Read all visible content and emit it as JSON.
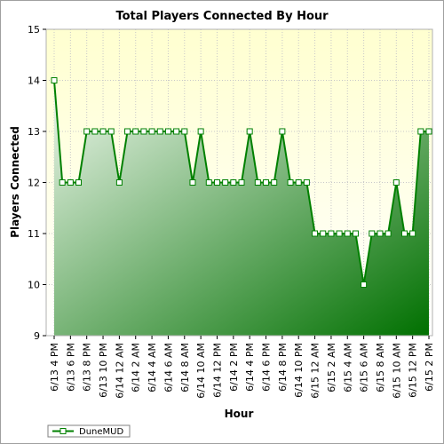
{
  "chart_data": {
    "type": "area",
    "title": "Total Players Connected By Hour",
    "xlabel": "Hour",
    "ylabel": "Players Connected",
    "ylim": [
      9,
      15
    ],
    "yticks": [
      9,
      10,
      11,
      12,
      13,
      14,
      15
    ],
    "grid": true,
    "legend_position": "bottom-left",
    "colors": {
      "line": "#008000",
      "fill_light": "#f0f8ee",
      "fill_dark": "#007000",
      "plot_bg_top": "#ffffd0",
      "plot_bg_bottom": "#ffffff",
      "marker_fill": "#ffffff",
      "grid": "#c8c8c8"
    },
    "tick_labels": [
      "6/13 4 PM",
      "6/13 6 PM",
      "6/13 8 PM",
      "6/13 10 PM",
      "6/14 12 AM",
      "6/14 2 AM",
      "6/14 4 AM",
      "6/14 6 AM",
      "6/14 8 AM",
      "6/14 10 AM",
      "6/14 12 PM",
      "6/14 2 PM",
      "6/14 4 PM",
      "6/14 6 PM",
      "6/14 8 PM",
      "6/14 10 PM",
      "6/15 12 AM",
      "6/15 2 AM",
      "6/15 4 AM",
      "6/15 6 AM",
      "6/15 8 AM",
      "6/15 10 AM",
      "6/15 12 PM",
      "6/15 2 PM"
    ],
    "series": [
      {
        "name": "DuneMUD",
        "values": [
          14,
          12,
          12,
          12,
          13,
          13,
          13,
          13,
          12,
          13,
          13,
          13,
          13,
          13,
          13,
          13,
          13,
          12,
          13,
          12,
          12,
          12,
          12,
          12,
          13,
          12,
          12,
          12,
          13,
          12,
          12,
          12,
          11,
          11,
          11,
          11,
          11,
          11,
          10,
          11,
          11,
          11,
          12,
          11,
          11,
          13,
          13
        ]
      }
    ]
  }
}
